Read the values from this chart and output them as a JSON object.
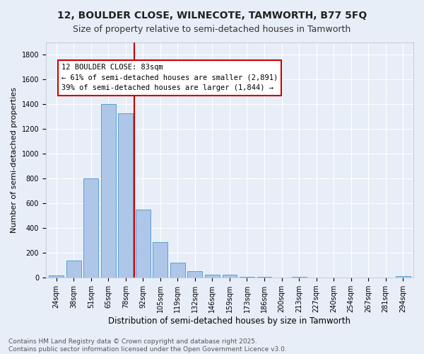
{
  "title1": "12, BOULDER CLOSE, WILNECOTE, TAMWORTH, B77 5FQ",
  "title2": "Size of property relative to semi-detached houses in Tamworth",
  "xlabel": "Distribution of semi-detached houses by size in Tamworth",
  "ylabel": "Number of semi-detached properties",
  "categories": [
    "24sqm",
    "38sqm",
    "51sqm",
    "65sqm",
    "78sqm",
    "92sqm",
    "105sqm",
    "119sqm",
    "132sqm",
    "146sqm",
    "159sqm",
    "173sqm",
    "186sqm",
    "200sqm",
    "213sqm",
    "227sqm",
    "240sqm",
    "254sqm",
    "267sqm",
    "281sqm",
    "294sqm"
  ],
  "values": [
    20,
    140,
    800,
    1400,
    1330,
    550,
    290,
    120,
    50,
    25,
    25,
    5,
    5,
    0,
    5,
    0,
    0,
    0,
    0,
    0,
    15
  ],
  "bar_color": "#aec6e8",
  "bar_edge_color": "#5a9fd4",
  "annotation_title": "12 BOULDER CLOSE: 83sqm",
  "annotation_line1": "← 61% of semi-detached houses are smaller (2,891)",
  "annotation_line2": "39% of semi-detached houses are larger (1,844) →",
  "annotation_box_color": "#ffffff",
  "annotation_box_edge": "#cc0000",
  "vline_color": "#cc0000",
  "ylim": [
    0,
    1900
  ],
  "yticks": [
    0,
    200,
    400,
    600,
    800,
    1000,
    1200,
    1400,
    1600,
    1800
  ],
  "background_color": "#e8eef8",
  "grid_color": "#ffffff",
  "footer1": "Contains HM Land Registry data © Crown copyright and database right 2025.",
  "footer2": "Contains public sector information licensed under the Open Government Licence v3.0.",
  "title1_fontsize": 10,
  "title2_fontsize": 9,
  "xlabel_fontsize": 8.5,
  "ylabel_fontsize": 8,
  "tick_fontsize": 7,
  "footer_fontsize": 6.5,
  "annotation_fontsize": 7.5
}
